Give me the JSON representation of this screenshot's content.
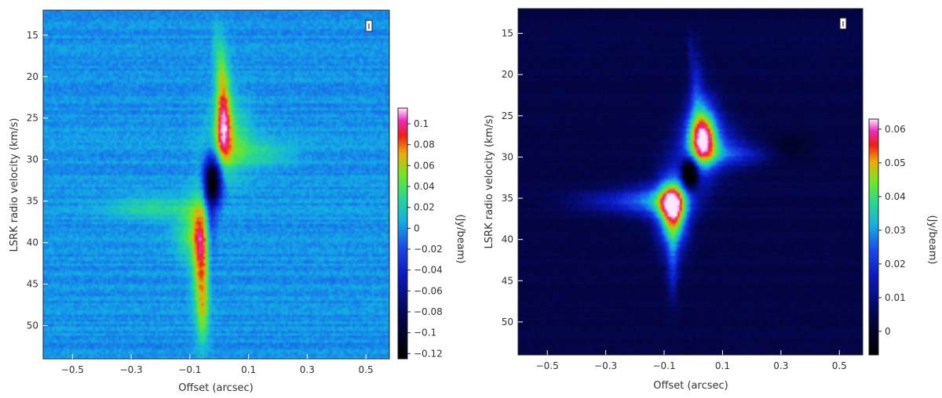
{
  "chart_data": [
    {
      "type": "heatmap",
      "title": "",
      "xlabel": "Offset (arcsec)",
      "ylabel": "LSRK radio velocity  (km/s)",
      "colorbar_label": "(Jy/beam)",
      "stokes_label": "I",
      "xlim": [
        -0.6,
        0.58
      ],
      "ylim": [
        54,
        12
      ],
      "x_ticks": [
        {
          "v": -0.5,
          "t": "−0.5"
        },
        {
          "v": -0.3,
          "t": "−0.3"
        },
        {
          "v": -0.1,
          "t": "−0.1"
        },
        {
          "v": 0.1,
          "t": "0.1"
        },
        {
          "v": 0.3,
          "t": "0.3"
        },
        {
          "v": 0.5,
          "t": "0.5"
        }
      ],
      "y_ticks": [
        {
          "v": 15,
          "t": "15"
        },
        {
          "v": 20,
          "t": "20"
        },
        {
          "v": 25,
          "t": "25"
        },
        {
          "v": 30,
          "t": "30"
        },
        {
          "v": 35,
          "t": "35"
        },
        {
          "v": 40,
          "t": "40"
        },
        {
          "v": 45,
          "t": "45"
        },
        {
          "v": 50,
          "t": "50"
        }
      ],
      "colorbar_range": [
        -0.125,
        0.115
      ],
      "colorbar_ticks": [
        {
          "v": 0.1,
          "t": "0.1"
        },
        {
          "v": 0.08,
          "t": "0.08"
        },
        {
          "v": 0.06,
          "t": "0.06"
        },
        {
          "v": 0.04,
          "t": "0.04"
        },
        {
          "v": 0.02,
          "t": "0.02"
        },
        {
          "v": 0,
          "t": "0"
        },
        {
          "v": -0.02,
          "t": "−0.02"
        },
        {
          "v": -0.04,
          "t": "−0.04"
        },
        {
          "v": -0.06,
          "t": "−0.06"
        },
        {
          "v": -0.08,
          "t": "−0.08"
        },
        {
          "v": -0.1,
          "t": "−0.1"
        },
        {
          "v": -0.12,
          "t": "−0.12"
        }
      ],
      "background_level": 0.0,
      "noise": 0.012,
      "features": [
        {
          "x0": 0.015,
          "v0": 25.0,
          "dx": 0.018,
          "dv": 4.0,
          "amp": 0.085
        },
        {
          "x0": 0.035,
          "v0": 27.5,
          "dx": 0.05,
          "dv": 3.0,
          "amp": 0.04
        },
        {
          "x0": 0.13,
          "v0": 29.3,
          "dx": 0.085,
          "dv": 1.1,
          "amp": 0.025
        },
        {
          "x0": 0.005,
          "v0": 19.0,
          "dx": 0.012,
          "dv": 2.5,
          "amp": 0.03
        },
        {
          "x0": -0.06,
          "v0": 42.0,
          "dx": 0.02,
          "dv": 5.0,
          "amp": 0.085
        },
        {
          "x0": -0.09,
          "v0": 38.5,
          "dx": 0.04,
          "dv": 2.5,
          "amp": 0.04
        },
        {
          "x0": -0.23,
          "v0": 35.8,
          "dx": 0.1,
          "dv": 1.0,
          "amp": 0.025
        },
        {
          "x0": -0.055,
          "v0": 49.0,
          "dx": 0.012,
          "dv": 2.5,
          "amp": 0.03
        },
        {
          "x0": -0.02,
          "v0": 32.6,
          "dx": 0.022,
          "dv": 2.0,
          "amp": -0.12
        },
        {
          "x0": -0.03,
          "v0": 37.0,
          "dx": 0.015,
          "dv": 5.0,
          "amp": -0.04
        },
        {
          "x0": -0.012,
          "v0": 15.5,
          "dx": 0.008,
          "dv": 2.0,
          "amp": 0.015
        }
      ]
    },
    {
      "type": "heatmap",
      "title": "",
      "xlabel": "Offset (arcsec)",
      "ylabel": "LSRK radio velocity  (km/s)",
      "colorbar_label": "(Jy/beam)",
      "stokes_label": "I",
      "xlim": [
        -0.6,
        0.58
      ],
      "ylim": [
        54,
        12
      ],
      "x_ticks": [
        {
          "v": -0.5,
          "t": "−0.5"
        },
        {
          "v": -0.3,
          "t": "−0.3"
        },
        {
          "v": -0.1,
          "t": "−0.1"
        },
        {
          "v": 0.1,
          "t": "0.1"
        },
        {
          "v": 0.3,
          "t": "0.3"
        },
        {
          "v": 0.5,
          "t": "0.5"
        }
      ],
      "y_ticks": [
        {
          "v": 15,
          "t": "15"
        },
        {
          "v": 20,
          "t": "20"
        },
        {
          "v": 25,
          "t": "25"
        },
        {
          "v": 30,
          "t": "30"
        },
        {
          "v": 35,
          "t": "35"
        },
        {
          "v": 40,
          "t": "40"
        },
        {
          "v": 45,
          "t": "45"
        },
        {
          "v": 50,
          "t": "50"
        }
      ],
      "colorbar_range": [
        -0.007,
        0.063
      ],
      "colorbar_ticks": [
        {
          "v": 0.06,
          "t": "0.06"
        },
        {
          "v": 0.05,
          "t": "0.05"
        },
        {
          "v": 0.04,
          "t": "0.04"
        },
        {
          "v": 0.03,
          "t": "0.03"
        },
        {
          "v": 0.02,
          "t": "0.02"
        },
        {
          "v": 0.01,
          "t": "0.01"
        },
        {
          "v": 0,
          "t": "0"
        }
      ],
      "background_level": 0.004,
      "noise": 0.003,
      "features": [
        {
          "x0": 0.03,
          "v0": 27.3,
          "dx": 0.035,
          "dv": 3.0,
          "amp": 0.045
        },
        {
          "x0": 0.05,
          "v0": 28.5,
          "dx": 0.07,
          "dv": 2.2,
          "amp": 0.02
        },
        {
          "x0": 0.15,
          "v0": 29.7,
          "dx": 0.08,
          "dv": 1.0,
          "amp": 0.012
        },
        {
          "x0": 0.01,
          "v0": 21.0,
          "dx": 0.015,
          "dv": 2.8,
          "amp": 0.012
        },
        {
          "x0": -0.07,
          "v0": 36.5,
          "dx": 0.035,
          "dv": 3.0,
          "amp": 0.05
        },
        {
          "x0": -0.11,
          "v0": 35.3,
          "dx": 0.08,
          "dv": 1.5,
          "amp": 0.02
        },
        {
          "x0": -0.25,
          "v0": 35.4,
          "dx": 0.12,
          "dv": 0.9,
          "amp": 0.012
        },
        {
          "x0": -0.07,
          "v0": 43.0,
          "dx": 0.014,
          "dv": 3.0,
          "amp": 0.014
        },
        {
          "x0": -0.012,
          "v0": 32.0,
          "dx": 0.018,
          "dv": 1.2,
          "amp": -0.04
        },
        {
          "x0": 0.33,
          "v0": 28.8,
          "dx": 0.05,
          "dv": 1.2,
          "amp": -0.005
        },
        {
          "x0": -0.01,
          "v0": 17.0,
          "dx": 0.006,
          "dv": 1.5,
          "amp": 0.006
        }
      ]
    }
  ]
}
